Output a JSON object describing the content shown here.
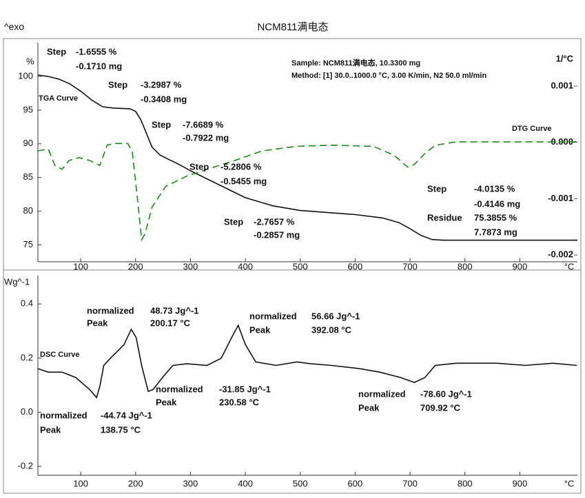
{
  "page": {
    "corner_label": "^exo",
    "title": "NCM811满电态"
  },
  "chart_data": [
    {
      "type": "line",
      "y_label": "%",
      "y2_label": "1/°C",
      "x_label": "°C",
      "xlim": [
        22,
        1005
      ],
      "xticks": [
        100,
        200,
        300,
        400,
        500,
        600,
        700,
        800,
        900
      ],
      "ylim": [
        72.5,
        105
      ],
      "yticks": [
        75,
        80,
        85,
        90,
        95,
        100
      ],
      "y2lim": [
        -0.00212,
        0.00177
      ],
      "y2ticks": [
        0.001,
        {
          "value": 0,
          "label": "0.000"
        },
        -0.001,
        -0.002
      ],
      "series": [
        {
          "name": "TGA Curve",
          "color": "#111111",
          "dash": false,
          "x": [
            22,
            40,
            60,
            80,
            100,
            120,
            140,
            160,
            190,
            200,
            210,
            220,
            230,
            245,
            260,
            280,
            300,
            330,
            360,
            400,
            450,
            500,
            550,
            600,
            650,
            680,
            700,
            720,
            740,
            760,
            800,
            900,
            1005
          ],
          "values": [
            100.2,
            100.0,
            99.6,
            98.9,
            97.8,
            96.5,
            95.5,
            95.3,
            95.2,
            94.8,
            93.5,
            91.5,
            89.5,
            88.3,
            87.7,
            86.9,
            86.0,
            84.8,
            83.6,
            82.0,
            80.8,
            80.1,
            79.8,
            79.5,
            79.0,
            78.3,
            77.4,
            76.4,
            75.8,
            75.7,
            75.7,
            75.7,
            75.7
          ]
        },
        {
          "name": "DTG Curve",
          "color": "#1a8a1a",
          "dash": true,
          "axis": "y2",
          "x": [
            22,
            41,
            53,
            66,
            79,
            97,
            116,
            135,
            148,
            160,
            186,
            194,
            205,
            211,
            217,
            230,
            255,
            293,
            330,
            381,
            431,
            494,
            557,
            633,
            671,
            696,
            708,
            727,
            746,
            784,
            834,
            1004
          ],
          "values": [
            -0.00015,
            -0.00012,
            -0.00041,
            -0.00048,
            -0.00032,
            -0.00027,
            -0.00032,
            -0.00041,
            -5e-05,
            -2e-05,
            -2e-05,
            -0.00017,
            -0.00115,
            -0.00173,
            -0.00163,
            -0.00115,
            -0.00078,
            -0.0006,
            -0.00048,
            -0.00032,
            -0.00015,
            -7e-05,
            -5e-05,
            -7e-05,
            -0.00023,
            -0.00044,
            -0.00039,
            -0.0002,
            -5e-05,
            1e-05,
            1e-05,
            1e-05
          ]
        }
      ],
      "annotations": [
        {
          "text": "Step",
          "color": "#111111"
        },
        {
          "text": "-1.6555 %",
          "color": "#111111"
        },
        {
          "text": "-0.1710 mg",
          "color": "#111111"
        },
        {
          "text": "Step",
          "color": "#e8231f"
        },
        {
          "text": "-3.2987 %",
          "color": "#e8231f"
        },
        {
          "text": "-0.3408 mg",
          "color": "#e8231f"
        },
        {
          "text": "Step",
          "color": "#1a1adb"
        },
        {
          "text": "-7.6689 %",
          "color": "#1a1adb"
        },
        {
          "text": "-0.7922 mg",
          "color": "#1a1adb"
        },
        {
          "text": "Step",
          "color": "#3a8a8a"
        },
        {
          "text": "-5.2806 %",
          "color": "#3a8a8a"
        },
        {
          "text": "-0.5455 mg",
          "color": "#3a8a8a"
        },
        {
          "text": "Step",
          "color": "#8a2a9a"
        },
        {
          "text": "-2.7657 %",
          "color": "#8a2a9a"
        },
        {
          "text": "-0.2857 mg",
          "color": "#8a2a9a"
        },
        {
          "text": "Step",
          "color": "#f08a1a"
        },
        {
          "text": "-4.0135 %",
          "color": "#f08a1a"
        },
        {
          "text": "-0.4146 mg",
          "color": "#f08a1a"
        },
        {
          "text": "Residue",
          "color": "#f08a1a"
        },
        {
          "text": "75.3855 %",
          "color": "#f08a1a"
        },
        {
          "text": "7.7873 mg",
          "color": "#f08a1a"
        },
        {
          "text": "Sample: NCM811满电态, 10.3300 mg",
          "color": "#111111"
        },
        {
          "text": "Method: [1] 30.0..1000.0 °C, 3.00 K/min, N2 50.0 ml/min",
          "color": "#111111"
        }
      ]
    },
    {
      "type": "line",
      "y_label": "Wg^-1",
      "x_label": "°C",
      "xlim": [
        22,
        1005
      ],
      "xticks": [
        100,
        200,
        300,
        400,
        500,
        600,
        700,
        800,
        900
      ],
      "ylim": [
        -0.233,
        0.505
      ],
      "yticks": [
        0.4,
        0.2,
        {
          "value": 0,
          "label": "0.0"
        },
        -0.2
      ],
      "series": [
        {
          "name": "DSC Curve",
          "color": "#111111",
          "dash": false,
          "x": [
            22,
            41,
            66,
            91,
            116,
            129,
            135,
            142,
            154,
            179,
            192,
            201,
            211,
            223,
            232,
            249,
            268,
            293,
            330,
            356,
            375,
            387,
            400,
            419,
            456,
            494,
            519,
            557,
            608,
            645,
            683,
            708,
            727,
            746,
            784,
            859,
            910,
            960,
            1004
          ],
          "values": [
            0.161,
            0.148,
            0.148,
            0.128,
            0.084,
            0.054,
            0.097,
            0.173,
            0.199,
            0.25,
            0.306,
            0.276,
            0.173,
            0.077,
            0.084,
            0.128,
            0.173,
            0.179,
            0.173,
            0.199,
            0.276,
            0.321,
            0.25,
            0.186,
            0.173,
            0.186,
            0.179,
            0.173,
            0.161,
            0.148,
            0.128,
            0.11,
            0.128,
            0.173,
            0.181,
            0.181,
            0.173,
            0.181,
            0.173
          ]
        }
      ],
      "annotations": [
        {
          "text": "normalized",
          "color": "#e8231f"
        },
        {
          "text": "Peak",
          "color": "#e8231f"
        },
        {
          "text": "48.73 Jg^-1",
          "color": "#e8231f"
        },
        {
          "text": "200.17 °C",
          "color": "#e8231f"
        },
        {
          "text": "normalized",
          "color": "#8a2a9a"
        },
        {
          "text": "Peak",
          "color": "#8a2a9a"
        },
        {
          "text": "56.66 Jg^-1",
          "color": "#8a2a9a"
        },
        {
          "text": "392.08 °C",
          "color": "#8a2a9a"
        },
        {
          "text": "normalized",
          "color": "#111111"
        },
        {
          "text": "Peak",
          "color": "#111111"
        },
        {
          "text": "-44.74 Jg^-1",
          "color": "#111111"
        },
        {
          "text": "138.75 °C",
          "color": "#111111"
        },
        {
          "text": "normalized",
          "color": "#3a8a8a"
        },
        {
          "text": "Peak",
          "color": "#3a8a8a"
        },
        {
          "text": "-31.85 Jg^-1",
          "color": "#3a8a8a"
        },
        {
          "text": "230.58 °C",
          "color": "#3a8a8a"
        },
        {
          "text": "normalized",
          "color": "#f08a1a"
        },
        {
          "text": "Peak",
          "color": "#f08a1a"
        },
        {
          "text": "-78.60 Jg^-1",
          "color": "#f08a1a"
        },
        {
          "text": "709.92 °C",
          "color": "#f08a1a"
        }
      ]
    }
  ]
}
